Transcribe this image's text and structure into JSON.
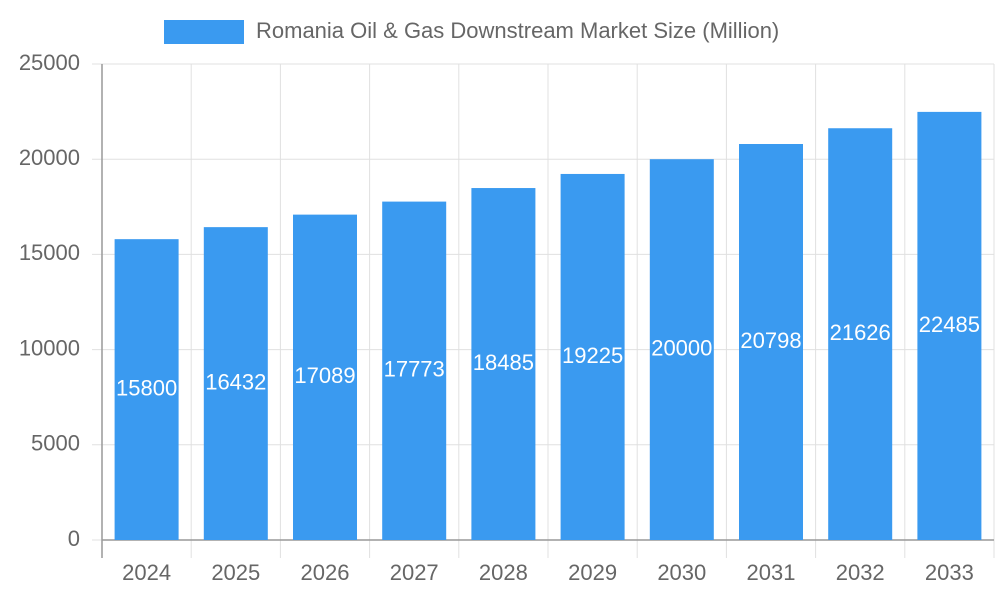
{
  "chart_data": {
    "type": "bar",
    "categories": [
      "2024",
      "2025",
      "2026",
      "2027",
      "2028",
      "2029",
      "2030",
      "2031",
      "2032",
      "2033"
    ],
    "series": [
      {
        "name": "Romania Oil & Gas Downstream Market Size (Million)",
        "color": "#3a9af0",
        "values": [
          15800,
          16432,
          17089,
          17773,
          18485,
          19225,
          20000,
          20798,
          21626,
          22485
        ]
      }
    ],
    "ylim": [
      0,
      25000
    ],
    "yticks": [
      0,
      5000,
      10000,
      15000,
      20000,
      25000
    ],
    "grid": true,
    "legend": "top"
  }
}
